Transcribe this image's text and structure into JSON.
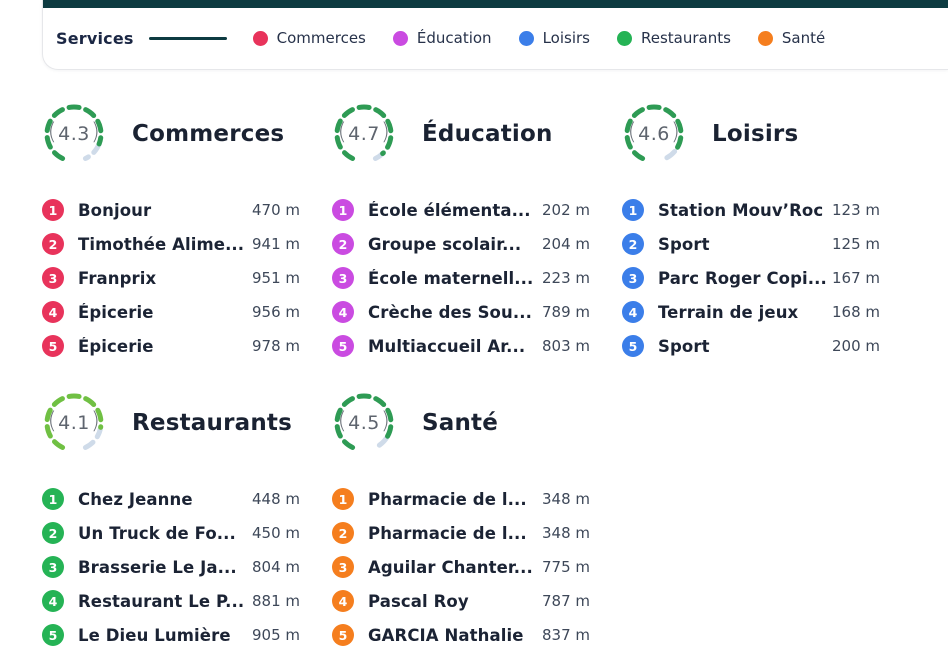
{
  "theme": {
    "topbar": "#0d3b41",
    "accent_line": "#0d3b41",
    "gauge_rest": "#cfdbe9",
    "gauge_green": "#2e9b54",
    "gauge_lime": "#70c043"
  },
  "header": {
    "title": "Services",
    "legend": [
      {
        "label": "Commerces",
        "color": "#e8335b"
      },
      {
        "label": "Éducation",
        "color": "#ca4be1"
      },
      {
        "label": "Loisirs",
        "color": "#3b7ee9"
      },
      {
        "label": "Restaurants",
        "color": "#25b355"
      },
      {
        "label": "Santé",
        "color": "#f57e1e"
      }
    ]
  },
  "sections": [
    {
      "title": "Commerces",
      "rating": 4.3,
      "color": "#e8335b",
      "gauge_color": "#2e9b54",
      "items": [
        {
          "rank": "1",
          "name": "Bonjour",
          "distance": "470 m"
        },
        {
          "rank": "2",
          "name": "Timothée Alime...",
          "distance": "941 m"
        },
        {
          "rank": "3",
          "name": "Franprix",
          "distance": "951 m"
        },
        {
          "rank": "4",
          "name": "Épicerie",
          "distance": "956 m"
        },
        {
          "rank": "5",
          "name": "Épicerie",
          "distance": "978 m"
        }
      ]
    },
    {
      "title": "Éducation",
      "rating": 4.7,
      "color": "#ca4be1",
      "gauge_color": "#2e9b54",
      "items": [
        {
          "rank": "1",
          "name": "École élémenta...",
          "distance": "202 m"
        },
        {
          "rank": "2",
          "name": "Groupe scolair...",
          "distance": "204 m"
        },
        {
          "rank": "3",
          "name": "École maternell...",
          "distance": "223 m"
        },
        {
          "rank": "4",
          "name": "Crèche des Sou...",
          "distance": "789 m"
        },
        {
          "rank": "5",
          "name": "Multiaccueil Ar...",
          "distance": "803 m"
        }
      ]
    },
    {
      "title": "Loisirs",
      "rating": 4.6,
      "color": "#3b7ee9",
      "gauge_color": "#2e9b54",
      "items": [
        {
          "rank": "1",
          "name": "Station Mouv’Roc",
          "distance": "123 m"
        },
        {
          "rank": "2",
          "name": "Sport",
          "distance": "125 m"
        },
        {
          "rank": "3",
          "name": "Parc Roger Copi...",
          "distance": "167 m"
        },
        {
          "rank": "4",
          "name": "Terrain de jeux",
          "distance": "168 m"
        },
        {
          "rank": "5",
          "name": "Sport",
          "distance": "200 m"
        }
      ]
    },
    {
      "title": "Restaurants",
      "rating": 4.1,
      "color": "#25b355",
      "gauge_color": "#70c043",
      "items": [
        {
          "rank": "1",
          "name": "Chez Jeanne",
          "distance": "448 m"
        },
        {
          "rank": "2",
          "name": "Un Truck de Fo...",
          "distance": "450 m"
        },
        {
          "rank": "3",
          "name": "Brasserie Le Ja...",
          "distance": "804 m"
        },
        {
          "rank": "4",
          "name": "Restaurant Le P...",
          "distance": "881 m"
        },
        {
          "rank": "5",
          "name": "Le Dieu Lumière",
          "distance": "905 m"
        }
      ]
    },
    {
      "title": "Santé",
      "rating": 4.5,
      "color": "#f57e1e",
      "gauge_color": "#2e9b54",
      "items": [
        {
          "rank": "1",
          "name": "Pharmacie de l...",
          "distance": "348 m"
        },
        {
          "rank": "2",
          "name": "Pharmacie de l...",
          "distance": "348 m"
        },
        {
          "rank": "3",
          "name": "Aguilar Chanter...",
          "distance": "775 m"
        },
        {
          "rank": "4",
          "name": "Pascal Roy",
          "distance": "787 m"
        },
        {
          "rank": "5",
          "name": "GARCIA Nathalie",
          "distance": "837 m"
        }
      ]
    }
  ]
}
